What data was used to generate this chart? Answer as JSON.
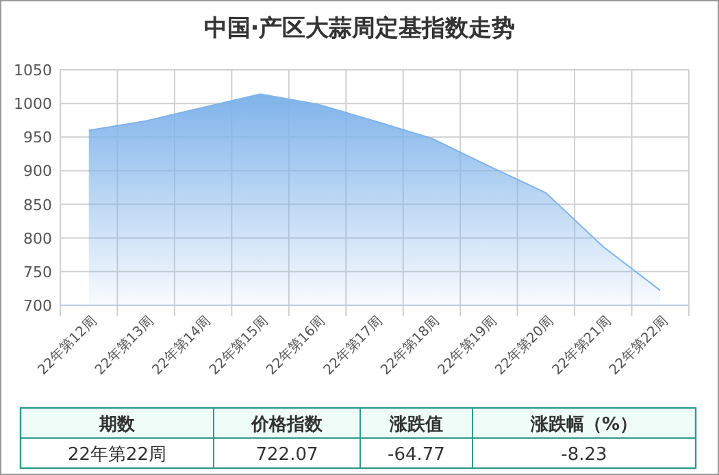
{
  "chart_data": {
    "type": "area",
    "title": "中国·产区大蒜周定基指数走势",
    "categories": [
      "22年第12周",
      "22年第13周",
      "22年第14周",
      "22年第15周",
      "22年第16周",
      "22年第17周",
      "22年第18周",
      "22年第19周",
      "22年第20周",
      "22年第21周",
      "22年第22周"
    ],
    "series": [
      {
        "color": "#7fb3ea",
        "values": [
          960,
          974,
          994,
          1014,
          999,
          974,
          948,
          907,
          867,
          787,
          722
        ]
      }
    ],
    "ylim": [
      700,
      1050
    ],
    "yticks": [
      700,
      750,
      800,
      850,
      900,
      950,
      1000,
      1050
    ],
    "grid": true,
    "annotations": [
      "期数",
      "价格指数",
      "涨跌值",
      "涨跌幅（%）",
      "22年第22周",
      "722.07",
      "-64.77",
      "-8.23"
    ]
  }
}
